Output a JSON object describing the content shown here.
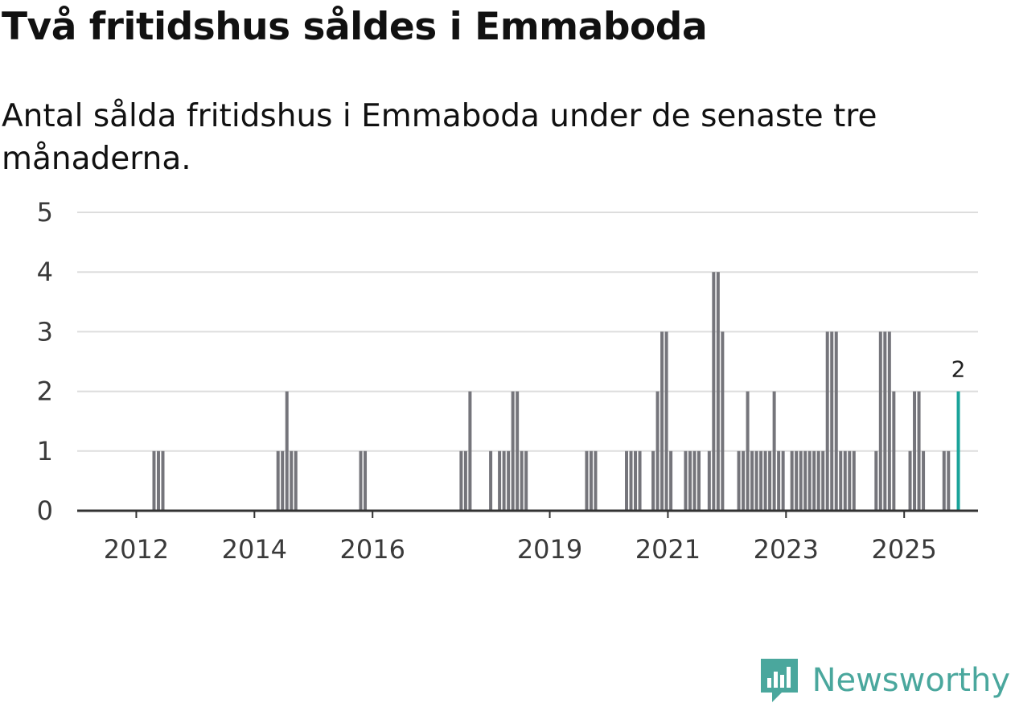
{
  "title": "Två fritidshus såldes i Emmaboda",
  "subtitle": "Antal sålda fritidshus i Emmaboda under de senaste tre månaderna.",
  "brand": {
    "name": "Newsworthy",
    "logo_icon": "newsworthy-logo-icon",
    "color": "#4aa79d"
  },
  "colors": {
    "bar": "#75757b",
    "highlight": "#1aa39a",
    "grid": "#dddddd",
    "axis": "#333333"
  },
  "chart_data": {
    "type": "bar",
    "title": "Två fritidshus såldes i Emmaboda",
    "subtitle": "Antal sålda fritidshus i Emmaboda under de senaste tre månaderna.",
    "xlabel": "",
    "ylabel": "",
    "ylim": [
      0,
      5
    ],
    "yticks": [
      0,
      1,
      2,
      3,
      4,
      5
    ],
    "x_range": [
      2011.0,
      2026.25
    ],
    "xticks": [
      {
        "label": "2012",
        "value": 2012.0
      },
      {
        "label": "2014",
        "value": 2014.0
      },
      {
        "label": "2016",
        "value": 2016.0
      },
      {
        "label": "2019",
        "value": 2019.0
      },
      {
        "label": "2021",
        "value": 2021.0
      },
      {
        "label": "2023",
        "value": 2023.0
      },
      {
        "label": "2025",
        "value": 2025.0
      }
    ],
    "grid": true,
    "highlight": {
      "x": 2025.917,
      "value": 2,
      "label": "2"
    },
    "series": [
      {
        "name": "Antal sålda fritidshus",
        "points": [
          [
            2012.3,
            1
          ],
          [
            2012.375,
            1
          ],
          [
            2012.45,
            1
          ],
          [
            2014.4,
            1
          ],
          [
            2014.475,
            1
          ],
          [
            2014.55,
            2
          ],
          [
            2014.625,
            1
          ],
          [
            2014.7,
            1
          ],
          [
            2015.8,
            1
          ],
          [
            2015.875,
            1
          ],
          [
            2017.5,
            1
          ],
          [
            2017.575,
            1
          ],
          [
            2017.65,
            2
          ],
          [
            2018.0,
            1
          ],
          [
            2018.15,
            1
          ],
          [
            2018.225,
            1
          ],
          [
            2018.3,
            1
          ],
          [
            2018.375,
            2
          ],
          [
            2018.45,
            2
          ],
          [
            2018.525,
            1
          ],
          [
            2018.6,
            1
          ],
          [
            2019.625,
            1
          ],
          [
            2019.7,
            1
          ],
          [
            2019.775,
            1
          ],
          [
            2020.3,
            1
          ],
          [
            2020.375,
            1
          ],
          [
            2020.45,
            1
          ],
          [
            2020.525,
            1
          ],
          [
            2020.75,
            1
          ],
          [
            2020.825,
            2
          ],
          [
            2020.9,
            3
          ],
          [
            2020.975,
            3
          ],
          [
            2021.05,
            1
          ],
          [
            2021.3,
            1
          ],
          [
            2021.375,
            1
          ],
          [
            2021.45,
            1
          ],
          [
            2021.525,
            1
          ],
          [
            2021.7,
            1
          ],
          [
            2021.775,
            4
          ],
          [
            2021.85,
            4
          ],
          [
            2021.925,
            3
          ],
          [
            2022.2,
            1
          ],
          [
            2022.275,
            1
          ],
          [
            2022.35,
            2
          ],
          [
            2022.425,
            1
          ],
          [
            2022.5,
            1
          ],
          [
            2022.575,
            1
          ],
          [
            2022.65,
            1
          ],
          [
            2022.725,
            1
          ],
          [
            2022.8,
            2
          ],
          [
            2022.875,
            1
          ],
          [
            2022.95,
            1
          ],
          [
            2023.1,
            1
          ],
          [
            2023.175,
            1
          ],
          [
            2023.25,
            1
          ],
          [
            2023.325,
            1
          ],
          [
            2023.4,
            1
          ],
          [
            2023.475,
            1
          ],
          [
            2023.55,
            1
          ],
          [
            2023.625,
            1
          ],
          [
            2023.7,
            3
          ],
          [
            2023.775,
            3
          ],
          [
            2023.85,
            3
          ],
          [
            2023.925,
            1
          ],
          [
            2024.0,
            1
          ],
          [
            2024.075,
            1
          ],
          [
            2024.15,
            1
          ],
          [
            2024.525,
            1
          ],
          [
            2024.6,
            3
          ],
          [
            2024.675,
            3
          ],
          [
            2024.75,
            3
          ],
          [
            2024.825,
            2
          ],
          [
            2025.1,
            1
          ],
          [
            2025.175,
            2
          ],
          [
            2025.25,
            2
          ],
          [
            2025.325,
            1
          ],
          [
            2025.675,
            1
          ],
          [
            2025.75,
            1
          ],
          [
            2025.917,
            2
          ]
        ]
      }
    ]
  }
}
